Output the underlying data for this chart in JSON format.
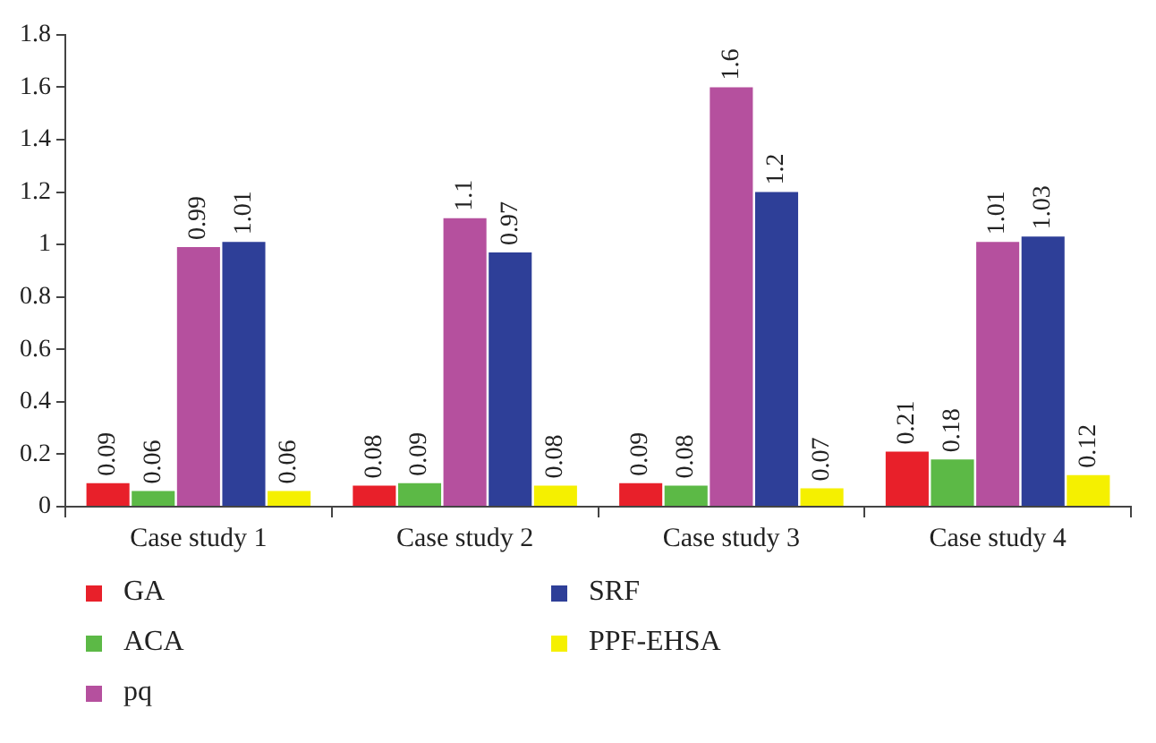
{
  "chart_data": {
    "type": "bar",
    "categories": [
      "Case study 1",
      "Case study 2",
      "Case study 3",
      "Case study 4"
    ],
    "series": [
      {
        "name": "GA",
        "color": "#e8202a",
        "values": [
          0.09,
          0.08,
          0.09,
          0.21
        ]
      },
      {
        "name": "ACA",
        "color": "#5cb946",
        "values": [
          0.06,
          0.09,
          0.08,
          0.18
        ]
      },
      {
        "name": "pq",
        "color": "#b5509e",
        "values": [
          0.99,
          1.1,
          1.6,
          1.01
        ]
      },
      {
        "name": "SRF",
        "color": "#2e3f98",
        "values": [
          1.01,
          0.97,
          1.2,
          1.03
        ]
      },
      {
        "name": "PPF-EHSA",
        "color": "#f5f000",
        "values": [
          0.06,
          0.08,
          0.07,
          0.12
        ]
      }
    ],
    "ylim": [
      0,
      1.8
    ],
    "yticks": [
      0,
      0.2,
      0.4,
      0.6,
      0.8,
      1,
      1.2,
      1.4,
      1.6,
      1.8
    ],
    "grid": false,
    "legend": "bottom",
    "data_labels": true
  }
}
